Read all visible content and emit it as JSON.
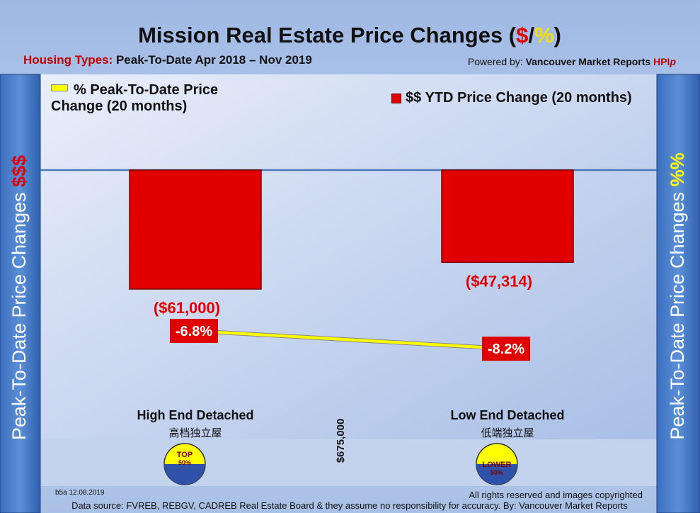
{
  "chart_data": {
    "type": "bar",
    "title": [
      "Mission Real Estate Price Changes (",
      "$",
      "/",
      "%",
      ")"
    ],
    "subtitle": [
      "Housing Types:",
      " Peak-To-Date Apr 2018 – Nov 2019"
    ],
    "powered_by": [
      "Powered by: ",
      "Vancouver Market Reports ",
      "HPI",
      "p"
    ],
    "left_axis_label": [
      "Peak-To-Date Price Changes ",
      "$$$"
    ],
    "right_axis_label": [
      "Peak-To-Date  Price  Changes  ",
      "%%"
    ],
    "categories": [
      "High End Detached",
      "Low End Detached"
    ],
    "categories_zh": [
      "高档独立屋",
      "低端独立屋"
    ],
    "badges": [
      [
        "TOP",
        "50%"
      ],
      [
        "LOWER",
        "50%"
      ]
    ],
    "median_label": "$675,000",
    "series": [
      {
        "name": "$$ YTD Price Change (20 months)",
        "color": "#e00000",
        "values": [
          -61000,
          -47314
        ],
        "value_labels": [
          "($61,000)",
          "($47,314)"
        ]
      },
      {
        "name": "% Peak-To-Date Price Change (20 months)",
        "color": "#ffff00",
        "type": "line",
        "axis": "y2",
        "values": [
          -6.8,
          -8.2
        ],
        "value_labels": [
          "-6.8%",
          "-8.2%"
        ]
      }
    ],
    "ylim": [
      -100000,
      30000
    ],
    "y2lim": [
      -9.5,
      10.5
    ],
    "footer": {
      "code": "b5a 12.08.2019",
      "rights": "All rights reserved and  images copyrighted",
      "source": "Data source: FVREB, REBGV, CADREB Real Estate Board & they assume no responsibility for accuracy. By: Vancouver Market Reports"
    }
  }
}
